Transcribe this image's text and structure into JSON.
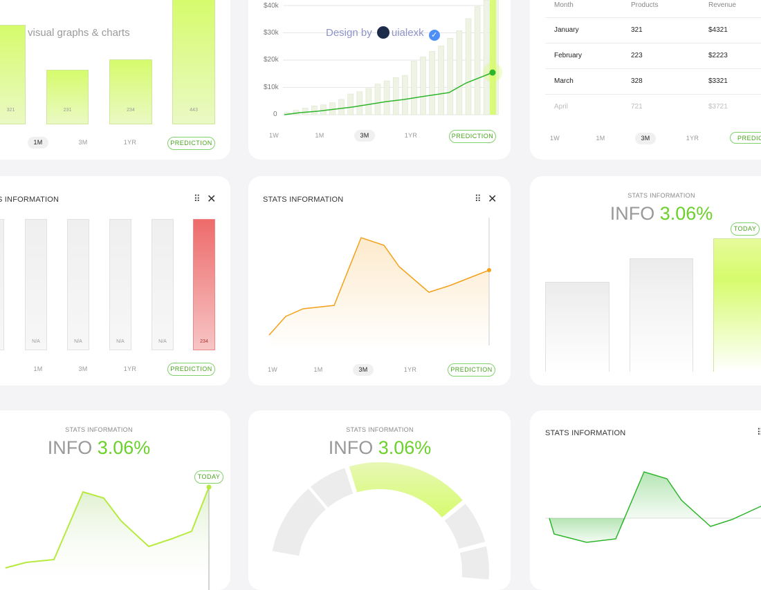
{
  "tabs": {
    "w1": "1W",
    "m1": "1M",
    "m3": "3M",
    "yr1": "1YR",
    "prediction": "PREDICTION",
    "today": "TODAY"
  },
  "card1": {
    "subtitle": "visual graphs & charts",
    "bar_values": [
      "321",
      "231",
      "234",
      "443"
    ]
  },
  "card2": {
    "y_ticks": [
      "$40k",
      "$30k",
      "$20k",
      "$10k",
      "0"
    ],
    "watermark_prefix": "Design by",
    "watermark_name": "uialexk"
  },
  "card3": {
    "headers": [
      "Month",
      "Products",
      "Revenue"
    ],
    "rows": [
      [
        "January",
        "321",
        "$4321"
      ],
      [
        "February",
        "223",
        "$2223"
      ],
      [
        "March",
        "328",
        "$3321"
      ],
      [
        "April",
        "721",
        "$3721"
      ]
    ]
  },
  "card4": {
    "title": "S INFORMATION",
    "bar_labels": [
      "N/A",
      "N/A",
      "N/A",
      "N/A",
      "234"
    ]
  },
  "card5": {
    "title": "STATS INFORMATION"
  },
  "card6": {
    "caption": "STATS INFORMATION",
    "info": "INFO",
    "pct": "3.06%"
  },
  "card7": {
    "caption": "STATS INFORMATION",
    "info": "INFO",
    "pct": "3.06%"
  },
  "card8": {
    "caption": "STATS INFORMATION",
    "info": "INFO",
    "pct": "3.06%"
  },
  "card9": {
    "title": "STATS INFORMATION"
  },
  "colors": {
    "accent": "#6bd12a",
    "orange": "#f4a019",
    "red": "#ee6b6b",
    "green_line": "#2db52a"
  },
  "chart_data": [
    {
      "type": "bar",
      "categories": [
        "",
        "",
        "",
        ""
      ],
      "values": [
        321,
        231,
        234,
        443
      ]
    },
    {
      "type": "bar",
      "y_ticks": [
        "$40k",
        "$30k",
        "$20k",
        "$10k",
        "0"
      ],
      "ylim": [
        0,
        40000
      ]
    },
    {
      "type": "line"
    },
    {
      "type": "line"
    },
    {
      "type": "pie"
    },
    {
      "type": "area"
    }
  ]
}
